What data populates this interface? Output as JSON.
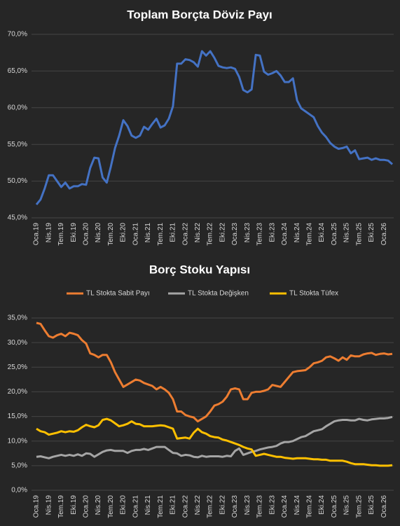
{
  "chart_data": [
    {
      "type": "line",
      "title": "Toplam Borçta Döviz Payı",
      "categories": [
        "Oca.19",
        null,
        null,
        "Nis.19",
        null,
        null,
        "Tem.19",
        null,
        null,
        "Eki.19",
        null,
        null,
        "Oca.20",
        null,
        null,
        "Nis.20",
        null,
        null,
        "Tem.20",
        null,
        null,
        "Eki.20",
        null,
        null,
        "Oca.21",
        null,
        null,
        "Nis.21",
        null,
        null,
        "Tem.21",
        null,
        null,
        "Eki.21",
        null,
        null,
        "Oca.22",
        null,
        null,
        "Nis.22",
        null,
        null,
        "Tem.22",
        null,
        null,
        "Eki.22",
        null,
        null,
        "Oca.23",
        null,
        null,
        "Nis.23",
        null,
        null,
        "Tem.23",
        null,
        null,
        "Eki.23",
        null,
        null,
        "Oca.24",
        null,
        null,
        "Nis.24",
        null,
        null,
        "Tem.24",
        null,
        null,
        "Eki.24",
        null,
        null,
        "Oca.25",
        null,
        null,
        "Nis.25",
        null,
        null,
        "Tem.25",
        null,
        null,
        "Eki.25",
        null,
        null,
        "Oca.26",
        null,
        null
      ],
      "series": [
        {
          "color": "#4472c4",
          "values": [
            46.8,
            47.5,
            49,
            50.8,
            50.8,
            50,
            49.2,
            49.8,
            49,
            49.3,
            49.3,
            49.6,
            49.5,
            51.8,
            53.2,
            53.1,
            50.5,
            49.8,
            52,
            54.5,
            56.2,
            58.3,
            57.5,
            56.2,
            55.9,
            56.2,
            57.4,
            57,
            57.8,
            58.5,
            57.3,
            57.6,
            58.5,
            60.2,
            66,
            66,
            66.6,
            66.5,
            66.2,
            65.6,
            67.7,
            67.1,
            67.7,
            66.8,
            65.7,
            65.5,
            65.4,
            65.5,
            65.3,
            64.2,
            62.4,
            62.1,
            62.5,
            67.2,
            67.1,
            64.9,
            64.5,
            64.7,
            65,
            64.4,
            63.5,
            63.5,
            64,
            61,
            59.9,
            59.5,
            59.1,
            58.7,
            57.5,
            56.6,
            56,
            55.2,
            54.7,
            54.4,
            54.5,
            54.7,
            53.8,
            54.2,
            53,
            53.1,
            53.2,
            52.9,
            53.1,
            52.9,
            52.9,
            52.8,
            52.3
          ]
        }
      ],
      "ylim": [
        45,
        70
      ],
      "yticks": [
        {
          "value": 45,
          "label": "45,0%"
        },
        {
          "value": 50,
          "label": "50,0%"
        },
        {
          "value": 55,
          "label": "55,0%"
        },
        {
          "value": 60,
          "label": "60,0%"
        },
        {
          "value": 65,
          "label": "65,0%"
        },
        {
          "value": 70,
          "label": "70,0%"
        }
      ],
      "grid": true
    },
    {
      "type": "line",
      "title": "Borç Stoku Yapısı",
      "categories": [
        "Oca.19",
        null,
        null,
        "Nis.19",
        null,
        null,
        "Tem.19",
        null,
        null,
        "Eki.19",
        null,
        null,
        "Oca.20",
        null,
        null,
        "Nis.20",
        null,
        null,
        "Tem.20",
        null,
        null,
        "Eki.20",
        null,
        null,
        "Oca.21",
        null,
        null,
        "Nis.21",
        null,
        null,
        "Tem.21",
        null,
        null,
        "Eki.21",
        null,
        null,
        "Oca.22",
        null,
        null,
        "Nis.22",
        null,
        null,
        "Tem.22",
        null,
        null,
        "Eki.22",
        null,
        null,
        "Oca.23",
        null,
        null,
        "Nis.23",
        null,
        null,
        "Tem.23",
        null,
        null,
        "Eki.23",
        null,
        null,
        "Oca.24",
        null,
        null,
        "Nis.24",
        null,
        null,
        "Tem.24",
        null,
        null,
        "Eki.24",
        null,
        null,
        "Oca.25",
        null,
        null,
        "Nis.25",
        null,
        null,
        "Tem.25",
        null,
        null,
        "Eki.25",
        null,
        null,
        "Oca.26",
        null,
        null
      ],
      "series": [
        {
          "name": "TL Stokta Sabit Payı",
          "color": "#ed7d31",
          "values": [
            34,
            33.8,
            32.5,
            31.3,
            31,
            31.5,
            31.8,
            31.3,
            32,
            31.8,
            31.5,
            30.5,
            29.8,
            27.8,
            27.5,
            27,
            27.5,
            27.5,
            26,
            24,
            22.5,
            21,
            21.5,
            22,
            22.5,
            22.3,
            21.8,
            21.5,
            21.2,
            20.5,
            21,
            20.5,
            19.8,
            18.5,
            16,
            16,
            15.3,
            15,
            14.8,
            14,
            14.5,
            15,
            16,
            17.2,
            17.5,
            18,
            19,
            20.5,
            20.7,
            20.5,
            18.5,
            18.5,
            19.8,
            20,
            20,
            20.2,
            20.5,
            21.4,
            21.2,
            21,
            22,
            23,
            24,
            24.2,
            24.3,
            24.4,
            25,
            25.8,
            26,
            26.3,
            27,
            27.2,
            26.8,
            26.3,
            27,
            26.5,
            27.4,
            27.2,
            27.2,
            27.6,
            27.8,
            27.9,
            27.5,
            27.7,
            27.8,
            27.6,
            27.7
          ]
        },
        {
          "name": "TL Stokta Değişken",
          "color": "#a5a5a5",
          "values": [
            6.8,
            6.9,
            6.7,
            6.5,
            6.8,
            7,
            7.2,
            7,
            7.2,
            7,
            7.3,
            7,
            7.5,
            7.4,
            6.8,
            7.3,
            7.8,
            8.1,
            8.2,
            8,
            8,
            8,
            7.6,
            8,
            8.2,
            8.2,
            8.4,
            8.2,
            8.5,
            8.8,
            8.8,
            8.8,
            8.2,
            7.6,
            7.5,
            7,
            7.2,
            7.1,
            6.8,
            6.7,
            7,
            6.8,
            6.9,
            6.9,
            6.9,
            6.8,
            7,
            6.9,
            8,
            8.5,
            7.2,
            7.5,
            7.8,
            8,
            8.3,
            8.5,
            8.7,
            8.8,
            9,
            9.5,
            9.8,
            9.8,
            10,
            10.4,
            10.8,
            11,
            11.5,
            12,
            12.2,
            12.4,
            13,
            13.5,
            14,
            14.2,
            14.3,
            14.3,
            14.2,
            14.2,
            14.5,
            14.3,
            14.2,
            14.4,
            14.5,
            14.6,
            14.6,
            14.7,
            14.9
          ]
        },
        {
          "name": "TL Stokta Tüfex",
          "color": "#ffc000",
          "values": [
            12.5,
            12,
            11.8,
            11.3,
            11.5,
            11.7,
            12,
            11.8,
            12,
            11.9,
            12.2,
            12.8,
            13.3,
            13,
            12.8,
            13.2,
            14.3,
            14.5,
            14.2,
            13.6,
            13,
            13.2,
            13.5,
            14,
            13.5,
            13.4,
            13,
            13,
            13,
            13.1,
            13.2,
            13.1,
            12.8,
            12.5,
            10.5,
            10.6,
            10.7,
            10.5,
            11.7,
            12.5,
            11.8,
            11.5,
            11,
            10.8,
            10.7,
            10.3,
            10.1,
            9.8,
            9.5,
            9.2,
            8.8,
            8.5,
            8.3,
            7,
            7.2,
            7.4,
            7.2,
            7,
            6.8,
            6.8,
            6.6,
            6.5,
            6.4,
            6.5,
            6.5,
            6.5,
            6.4,
            6.3,
            6.3,
            6.2,
            6.2,
            6,
            6,
            6,
            6,
            5.8,
            5.5,
            5.3,
            5.3,
            5.3,
            5.2,
            5.1,
            5.1,
            5,
            5,
            5,
            5.1
          ]
        }
      ],
      "ylim": [
        0,
        35
      ],
      "yticks": [
        {
          "value": 0,
          "label": "0,0%"
        },
        {
          "value": 5,
          "label": "5,0%"
        },
        {
          "value": 10,
          "label": "10,0%"
        },
        {
          "value": 15,
          "label": "15,0%"
        },
        {
          "value": 20,
          "label": "20,0%"
        },
        {
          "value": 25,
          "label": "25,0%"
        },
        {
          "value": 30,
          "label": "30,0%"
        },
        {
          "value": 35,
          "label": "35,0%"
        }
      ],
      "grid": true,
      "legend": "top"
    }
  ]
}
